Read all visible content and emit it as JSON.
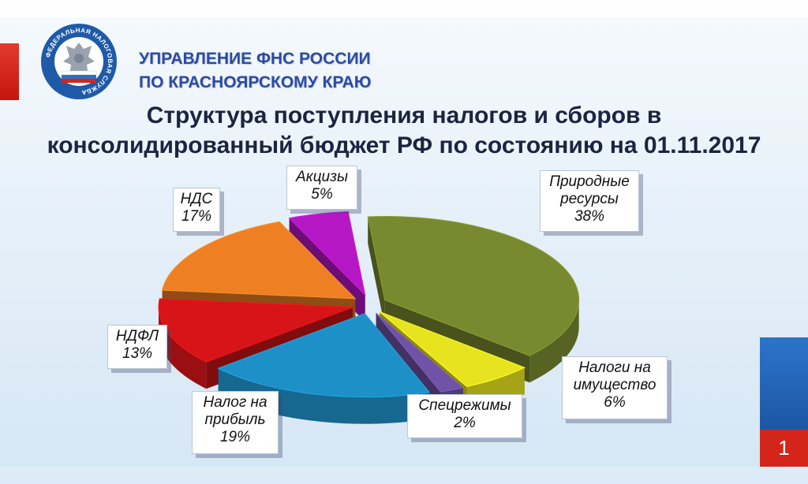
{
  "header": {
    "org_line1": "УПРАВЛЕНИЕ ФНС РОССИИ",
    "org_line2": "ПО КРАСНОЯРСКОМУ  КРАЮ",
    "logo_text": "ФЕДЕРАЛЬНАЯ НАЛОГОВАЯ СЛУЖБА"
  },
  "colors": {
    "org_blue": "#2a4aa6",
    "accent_red": "#d4251a",
    "accent_blue": "#1d56a5"
  },
  "chart_data": {
    "type": "pie",
    "title_line1": "Структура поступления налогов и сборов в",
    "title_line2": "консолидированный бюджет РФ по состоянию на 01.11.2017",
    "slices": [
      {
        "label": "Природные ресурсы",
        "label_lines": [
          "Природные",
          "ресурсы"
        ],
        "value": 38,
        "value_text": "38%",
        "color": "#79892f"
      },
      {
        "label": "Налоги на имущество",
        "label_lines": [
          "Налоги на",
          "имущество"
        ],
        "value": 6,
        "value_text": "6%",
        "color": "#e7e31f"
      },
      {
        "label": "Спецрежимы",
        "label_lines": [
          "Спецрежимы"
        ],
        "value": 2,
        "value_text": "2%",
        "color": "#7052a6"
      },
      {
        "label": "Налог на прибыль",
        "label_lines": [
          "Налог на",
          "прибыль"
        ],
        "value": 19,
        "value_text": "19%",
        "color": "#1e90c8"
      },
      {
        "label": "НДФЛ",
        "label_lines": [
          "НДФЛ"
        ],
        "value": 13,
        "value_text": "13%",
        "color": "#d71418"
      },
      {
        "label": "НДС",
        "label_lines": [
          "НДС"
        ],
        "value": 17,
        "value_text": "17%",
        "color": "#ee7f22"
      },
      {
        "label": "Акцизы",
        "label_lines": [
          "Акцизы"
        ],
        "value": 5,
        "value_text": "5%",
        "color": "#b517c4"
      }
    ],
    "exploded": true,
    "style": "3d",
    "legend": "none"
  },
  "footer": {
    "page_number": "1"
  }
}
